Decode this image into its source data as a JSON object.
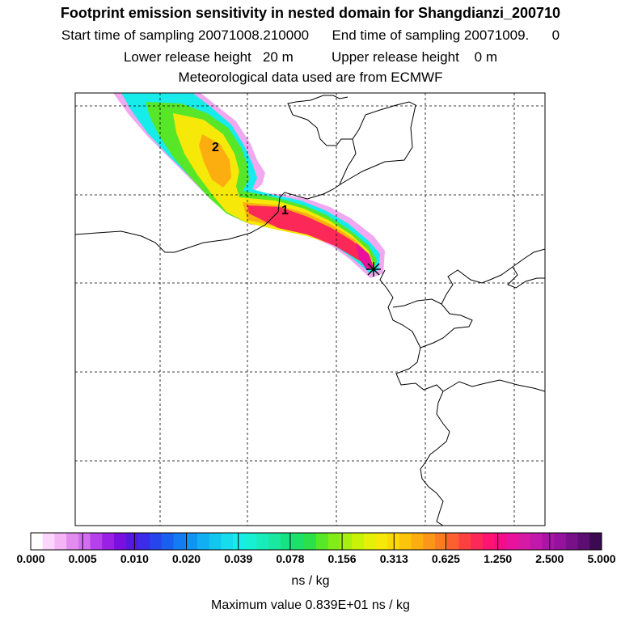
{
  "titles": {
    "line1": "Footprint emission sensitivity in nested domain for Shangdianzi_200710",
    "line2": "Start time of sampling 20071008.210000      End time of sampling 20071009.      0",
    "line3": "Lower release height   20 m          Upper release height    0 m",
    "line4": "Meteorological data used are from ECMWF"
  },
  "map": {
    "markers": [
      {
        "id": "1",
        "label": "1"
      },
      {
        "id": "2",
        "label": "2"
      }
    ],
    "release_marker": "star-icon"
  },
  "colorbar": {
    "ticks": [
      "0.000",
      "0.005",
      "0.010",
      "0.020",
      "0.039",
      "0.078",
      "0.156",
      "0.313",
      "0.625",
      "1.250",
      "2.500",
      "5.000"
    ],
    "colors": [
      "#ffffff",
      "#fcd6fc",
      "#f5b4f5",
      "#e38cf0",
      "#d070f0",
      "#b640ec",
      "#9b20e6",
      "#7a10e0",
      "#5518e0",
      "#3a2ce8",
      "#2646ec",
      "#1a60f0",
      "#137cf2",
      "#0f94f4",
      "#10aef2",
      "#12c6ef",
      "#16dced",
      "#18ecea",
      "#18f0d4",
      "#18ecba",
      "#18e8a0",
      "#16e484",
      "#1ce068",
      "#2ce04a",
      "#58e628",
      "#80ec18",
      "#a8f010",
      "#c8f208",
      "#e4f00a",
      "#f6e808",
      "#fbd808",
      "#fcc40a",
      "#fcae10",
      "#fc9618",
      "#fc7c20",
      "#fc6030",
      "#fc4040",
      "#fc2858",
      "#fc1470",
      "#f40c88",
      "#e8129c",
      "#d61aa6",
      "#c218ac",
      "#ac14a8",
      "#94129c",
      "#78108a",
      "#5c0e72",
      "#3c0a50"
    ],
    "units": "ns / kg",
    "max_label": "Maximum value  0.839E+01 ns / kg"
  }
}
